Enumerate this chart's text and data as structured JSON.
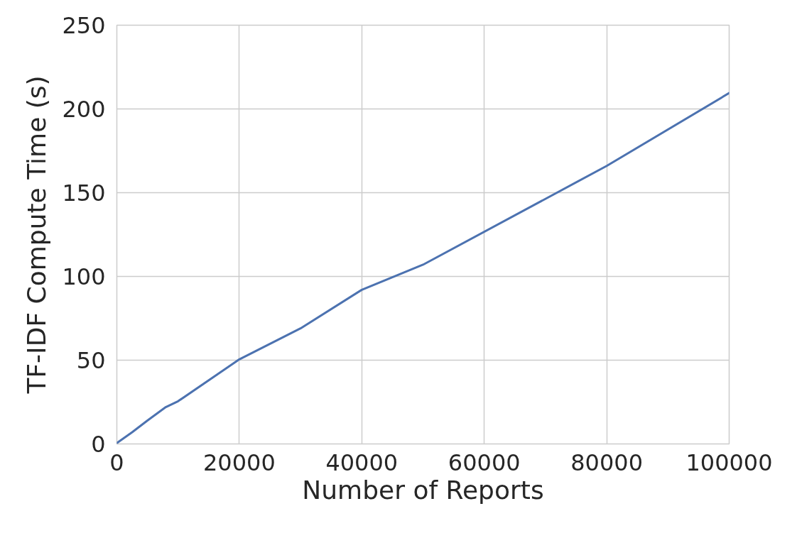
{
  "chart_data": {
    "type": "line",
    "xlabel": "Number of Reports",
    "ylabel": "TF-IDF Compute Time (s)",
    "x": [
      0,
      2500,
      5000,
      8000,
      10000,
      20000,
      30000,
      40000,
      50000,
      80000,
      100000
    ],
    "series": [
      {
        "color": "#4c72b0",
        "values": [
          0.5,
          7,
          14,
          22,
          25.5,
          50.5,
          69,
          92,
          107,
          166,
          209.5
        ]
      }
    ],
    "xlim": [
      0,
      100000
    ],
    "ylim": [
      0,
      250
    ],
    "xticks": [
      0,
      20000,
      40000,
      60000,
      80000,
      100000
    ],
    "yticks": [
      0,
      50,
      100,
      150,
      200,
      250
    ],
    "grid": true,
    "line_style": "solid"
  }
}
